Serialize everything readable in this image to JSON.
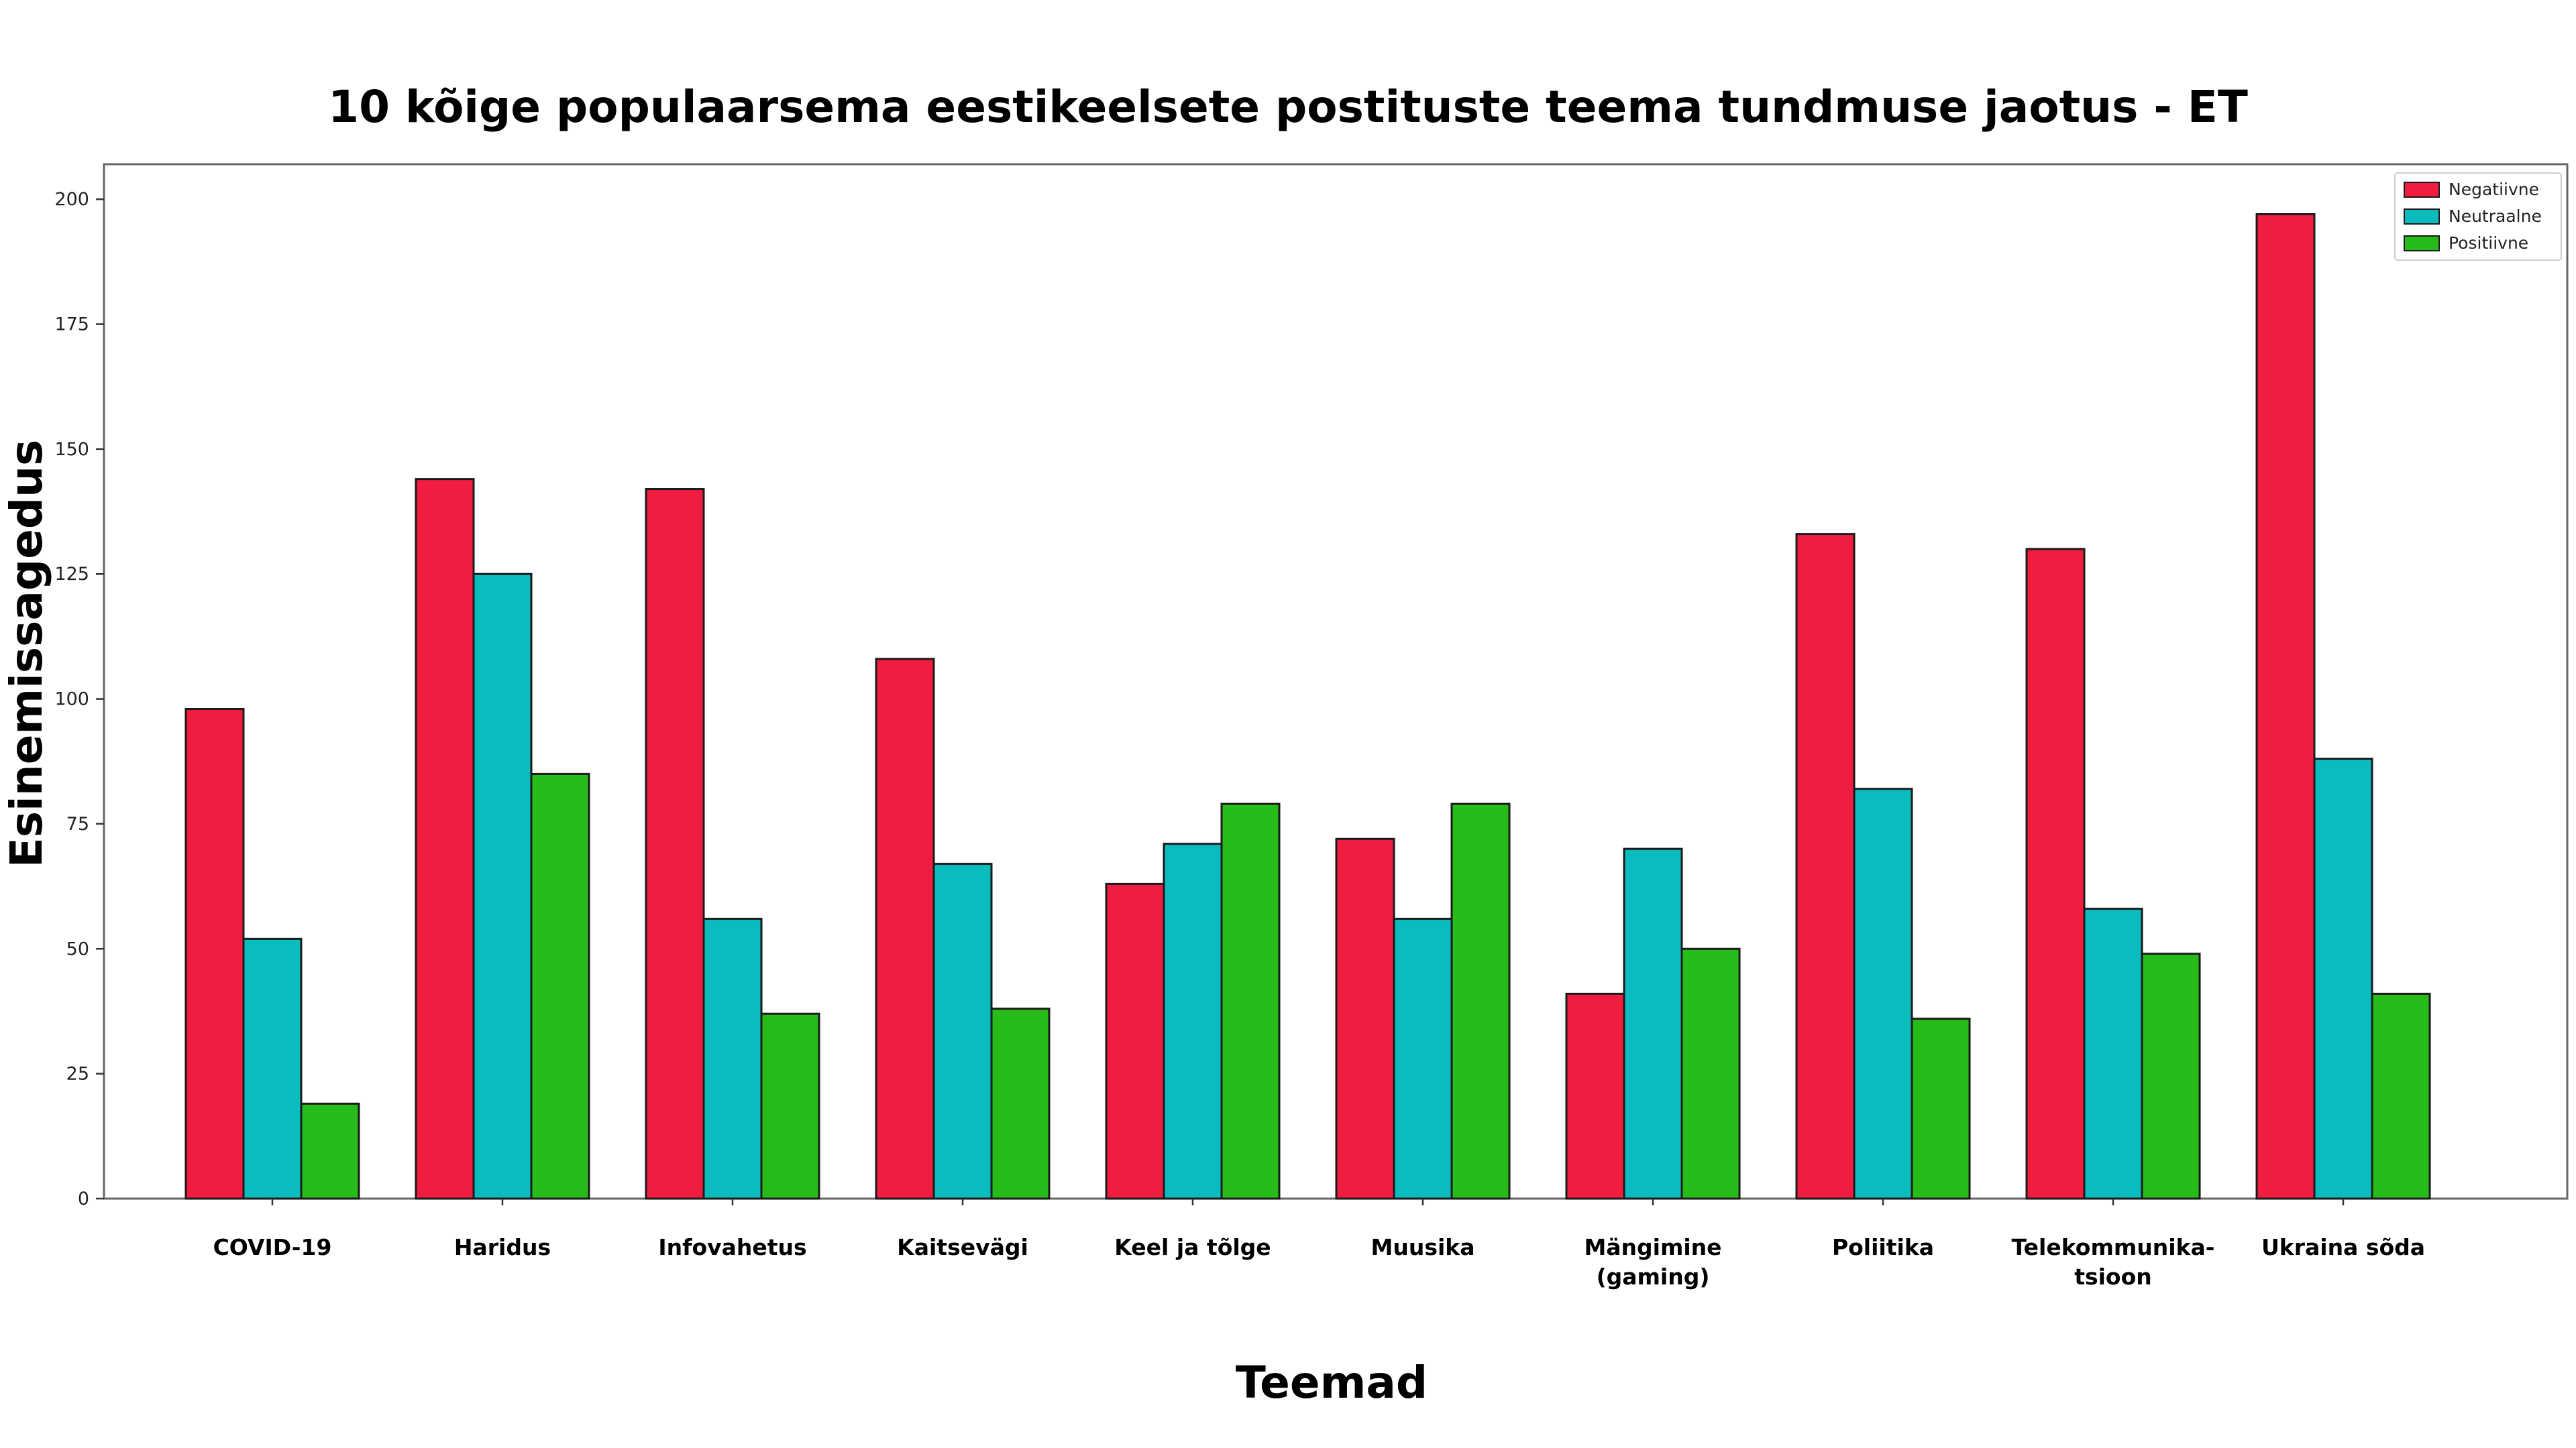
{
  "chart_data": {
    "type": "bar",
    "title": "10 kõige populaarsema eestikeelsete postituste teema tundmuse jaotus - ET",
    "xlabel": "Teemad",
    "ylabel": "Esinemissagedus",
    "categories": [
      "COVID-19",
      "Haridus",
      "Infovahetus",
      "Kaitsevägi",
      "Keel ja tõlge",
      "Muusika",
      "Mängimine (gaming)",
      "Poliitika",
      "Telekommunika-tsioon",
      "Ukraina sõda"
    ],
    "category_lines": [
      [
        "COVID-19"
      ],
      [
        "Haridus"
      ],
      [
        "Infovahetus"
      ],
      [
        "Kaitsevägi"
      ],
      [
        "Keel ja tõlge"
      ],
      [
        "Muusika"
      ],
      [
        "Mängimine",
        "(gaming)"
      ],
      [
        "Poliitika"
      ],
      [
        "Telekommunika-",
        "tsioon"
      ],
      [
        "Ukraina sõda"
      ]
    ],
    "series": [
      {
        "name": "Negatiivne",
        "color": "#f01d41",
        "values": [
          98,
          144,
          142,
          108,
          63,
          72,
          41,
          133,
          130,
          197
        ]
      },
      {
        "name": "Neutraalne",
        "color": "#0bbcbf",
        "values": [
          52,
          125,
          56,
          67,
          71,
          56,
          70,
          82,
          58,
          88
        ]
      },
      {
        "name": "Positiivne",
        "color": "#28bc1a",
        "values": [
          19,
          85,
          37,
          38,
          79,
          79,
          50,
          36,
          49,
          41
        ]
      }
    ],
    "ylim": [
      0,
      207
    ],
    "yticks": [
      0,
      25,
      50,
      75,
      100,
      125,
      150,
      175,
      200
    ],
    "legend_position": "top-right",
    "grid": false
  }
}
